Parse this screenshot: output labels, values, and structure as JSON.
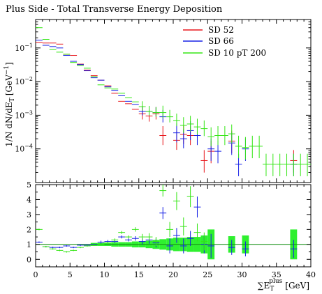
{
  "chart_data": {
    "type": "scatter",
    "title": "Plus Side - Total Transverse Energy Deposition",
    "xlabel": "∑E_T^plus [GeV]",
    "xlabel_sum": "∑",
    "xlabel_var": "E",
    "xlabel_sub": "T",
    "xlabel_sup": "plus",
    "xlabel_unit": "[GeV]",
    "ylabel": "1/N dN/dE_T [GeV^−1]",
    "ylabel_main": "1/N dN/dE",
    "ylabel_sub": "T",
    "ylabel_unit": "[GeV",
    "ylabel_sup": "−1",
    "ylabel_close": "]",
    "xlim": [
      0,
      40
    ],
    "ylim_main": [
      1e-05,
      0.7
    ],
    "yscale_main": "log",
    "ylim_ratio": [
      -0.5,
      5
    ],
    "legend_placement": "top-right",
    "x_ticks": [
      0,
      5,
      10,
      15,
      20,
      25,
      30,
      35,
      40
    ],
    "x_tick_labels": [
      "0",
      "5",
      "10",
      "15",
      "20",
      "25",
      "30",
      "35",
      "40"
    ],
    "y_ticks_main": [
      0.0001,
      0.001,
      0.01,
      0.1
    ],
    "y_tick_labels_main": [
      "10",
      "10",
      "10",
      "10"
    ],
    "y_tick_exps_main": [
      "−4",
      "−3",
      "−2",
      "−1"
    ],
    "y_ticks_ratio": [
      0,
      1,
      2,
      3,
      4,
      5
    ],
    "y_tick_labels_ratio": [
      "0",
      "1",
      "2",
      "3",
      "4",
      "5"
    ],
    "colors": {
      "sd52": "#e8161b",
      "sd66": "#1621e6",
      "sd10": "#35e615",
      "band": "#2ff02f",
      "ratio_line": "#169016"
    },
    "series": [
      {
        "name": "SD 52",
        "color": "#e8161b",
        "points": [
          [
            0.5,
            0.145,
            0
          ],
          [
            1.5,
            0.14,
            0
          ],
          [
            2.5,
            0.14,
            0
          ],
          [
            3.5,
            0.13,
            0
          ],
          [
            4.5,
            0.065,
            0
          ],
          [
            5.5,
            0.06,
            0
          ],
          [
            6.5,
            0.033,
            0
          ],
          [
            7.5,
            0.022,
            0
          ],
          [
            8.5,
            0.015,
            0
          ],
          [
            9.5,
            0.011,
            0
          ],
          [
            10.5,
            0.0075,
            0
          ],
          [
            11.5,
            0.0045,
            0
          ],
          [
            12.5,
            0.0026,
            0
          ],
          [
            13.5,
            0.0022,
            0
          ],
          [
            14.5,
            0.0015,
            0
          ],
          [
            15.5,
            0.0011,
            0.2
          ],
          [
            16.5,
            0.00095,
            0.2
          ],
          [
            17.5,
            0.0011,
            0.2
          ],
          [
            18.5,
            0.00025,
            0.3
          ],
          [
            20.5,
            0.00018,
            0.3
          ],
          [
            21.5,
            0.00027,
            0.3
          ],
          [
            22.5,
            0.00025,
            0.3
          ],
          [
            24.5,
            4.5e-05,
            0.35
          ],
          [
            25.5,
            8.5e-05,
            0.35
          ],
          [
            28.5,
            0.00017,
            0.35
          ],
          [
            37.5,
            4.5e-05,
            0.35
          ]
        ]
      },
      {
        "name": "SD 66",
        "color": "#1621e6",
        "points": [
          [
            0.5,
            0.17,
            0
          ],
          [
            1.5,
            0.12,
            0
          ],
          [
            2.5,
            0.11,
            0
          ],
          [
            3.5,
            0.1,
            0
          ],
          [
            4.5,
            0.06,
            0
          ],
          [
            5.5,
            0.04,
            0
          ],
          [
            6.5,
            0.032,
            0
          ],
          [
            7.5,
            0.021,
            0
          ],
          [
            8.5,
            0.013,
            0
          ],
          [
            9.5,
            0.011,
            0
          ],
          [
            10.5,
            0.007,
            0
          ],
          [
            11.5,
            0.0055,
            0
          ],
          [
            12.5,
            0.0038,
            0
          ],
          [
            13.5,
            0.0026,
            0
          ],
          [
            14.5,
            0.0021,
            0
          ],
          [
            15.5,
            0.0013,
            0.15
          ],
          [
            16.5,
            0.0013,
            0.15
          ],
          [
            17.5,
            0.0012,
            0.15
          ],
          [
            18.5,
            0.0009,
            0.2
          ],
          [
            20.5,
            0.0003,
            0.3
          ],
          [
            21.5,
            0.0002,
            0.3
          ],
          [
            22.5,
            0.00035,
            0.3
          ],
          [
            23.5,
            0.00025,
            0.3
          ],
          [
            25.5,
            0.0001,
            0.35
          ],
          [
            26.5,
            8.5e-05,
            0.35
          ],
          [
            28.5,
            0.00015,
            0.35
          ],
          [
            29.5,
            3.5e-05,
            0.35
          ],
          [
            30.5,
            0.0001,
            0.35
          ],
          [
            37.5,
            3.5e-05,
            0.35
          ]
        ]
      },
      {
        "name": "SD 10 pT 200",
        "color": "#35e615",
        "points": [
          [
            0.5,
            0.4,
            0
          ],
          [
            1.5,
            0.18,
            0
          ],
          [
            2.5,
            0.09,
            0
          ],
          [
            3.5,
            0.075,
            0
          ],
          [
            4.5,
            0.065,
            0
          ],
          [
            5.5,
            0.037,
            0
          ],
          [
            6.5,
            0.03,
            0
          ],
          [
            7.5,
            0.025,
            0
          ],
          [
            8.5,
            0.014,
            0
          ],
          [
            9.5,
            0.008,
            0
          ],
          [
            10.5,
            0.0065,
            0
          ],
          [
            11.5,
            0.006,
            0
          ],
          [
            12.5,
            0.0045,
            0
          ],
          [
            13.5,
            0.0033,
            0
          ],
          [
            14.5,
            0.0025,
            0
          ],
          [
            15.5,
            0.0018,
            0.15
          ],
          [
            16.5,
            0.0013,
            0.15
          ],
          [
            17.5,
            0.0012,
            0.15
          ],
          [
            18.5,
            0.0012,
            0.2
          ],
          [
            19.5,
            0.0009,
            0.2
          ],
          [
            20.5,
            0.0007,
            0.2
          ],
          [
            21.5,
            0.0005,
            0.25
          ],
          [
            22.5,
            0.00055,
            0.25
          ],
          [
            23.5,
            0.00045,
            0.25
          ],
          [
            24.5,
            0.0004,
            0.25
          ],
          [
            25.5,
            0.00023,
            0.3
          ],
          [
            26.5,
            0.00025,
            0.3
          ],
          [
            27.5,
            0.00025,
            0.3
          ],
          [
            28.5,
            0.00028,
            0.3
          ],
          [
            29.5,
            0.00012,
            0.35
          ],
          [
            30.5,
            0.00011,
            0.35
          ],
          [
            31.5,
            0.00012,
            0.35
          ],
          [
            32.5,
            0.00012,
            0.35
          ],
          [
            33.5,
            3.5e-05,
            0.35
          ],
          [
            34.5,
            3.5e-05,
            0.35
          ],
          [
            35.5,
            3.5e-05,
            0.35
          ],
          [
            36.5,
            3.5e-05,
            0.35
          ],
          [
            37.5,
            3.5e-05,
            0.35
          ],
          [
            38.5,
            3.5e-05,
            0.35
          ],
          [
            39.5,
            3.5e-05,
            0.35
          ]
        ]
      }
    ],
    "ratio_series": [
      {
        "name": "SD 66",
        "color": "#1621e6",
        "points": [
          [
            0.5,
            1.15,
            0.05
          ],
          [
            1.5,
            0.85,
            0.05
          ],
          [
            2.5,
            0.8,
            0.05
          ],
          [
            3.5,
            0.8,
            0.05
          ],
          [
            4.5,
            0.9,
            0.05
          ],
          [
            5.5,
            0.8,
            0.05
          ],
          [
            6.5,
            0.95,
            0.05
          ],
          [
            7.5,
            0.95,
            0.05
          ],
          [
            8.5,
            1.0,
            0.05
          ],
          [
            9.5,
            1.15,
            0.1
          ],
          [
            10.5,
            1.2,
            0.1
          ],
          [
            11.5,
            1.2,
            0.1
          ],
          [
            12.5,
            1.5,
            0.1
          ],
          [
            13.5,
            1.3,
            0.1
          ],
          [
            14.5,
            1.4,
            0.15
          ],
          [
            15.5,
            1.2,
            0.2
          ],
          [
            16.5,
            1.3,
            0.25
          ],
          [
            17.5,
            1.1,
            0.3
          ],
          [
            18.5,
            3.1,
            0.4
          ],
          [
            19.5,
            0.9,
            0.5
          ],
          [
            20.5,
            1.6,
            0.5
          ],
          [
            21.5,
            0.9,
            0.5
          ],
          [
            22.5,
            1.4,
            0.5
          ],
          [
            23.5,
            3.5,
            0.7
          ],
          [
            24.5,
            1.0,
            0.6
          ],
          [
            25.5,
            0.9,
            0.8
          ],
          [
            28.5,
            0.8,
            0.5
          ],
          [
            30.5,
            0.7,
            0.5
          ],
          [
            37.5,
            0.7,
            0.6
          ]
        ]
      },
      {
        "name": "SD 10 pT 200",
        "color": "#35e615",
        "points": [
          [
            0.5,
            2.0,
            0.05
          ],
          [
            1.5,
            0.85,
            0.05
          ],
          [
            2.5,
            0.7,
            0.05
          ],
          [
            3.5,
            0.6,
            0.05
          ],
          [
            4.5,
            0.5,
            0.05
          ],
          [
            5.5,
            0.6,
            0.05
          ],
          [
            6.5,
            0.8,
            0.05
          ],
          [
            7.5,
            0.9,
            0.05
          ],
          [
            8.5,
            0.95,
            0.05
          ],
          [
            9.5,
            1.0,
            0.05
          ],
          [
            10.5,
            1.1,
            0.05
          ],
          [
            11.5,
            1.3,
            0.1
          ],
          [
            12.5,
            1.8,
            0.1
          ],
          [
            13.5,
            1.5,
            0.1
          ],
          [
            14.5,
            2.0,
            0.15
          ],
          [
            15.5,
            1.5,
            0.2
          ],
          [
            16.5,
            1.5,
            0.25
          ],
          [
            17.5,
            1.2,
            0.3
          ],
          [
            18.5,
            4.6,
            0.4
          ],
          [
            19.5,
            2.0,
            0.5
          ],
          [
            20.5,
            3.9,
            0.6
          ],
          [
            21.5,
            2.2,
            0.6
          ],
          [
            22.5,
            4.2,
            0.7
          ],
          [
            23.5,
            1.8,
            0.6
          ],
          [
            24.5,
            1.2,
            0.6
          ]
        ]
      }
    ],
    "ratio_band": [
      [
        8,
        1.0,
        0.1
      ],
      [
        9,
        1.0,
        0.1
      ],
      [
        10,
        1.0,
        0.1
      ],
      [
        11,
        1.0,
        0.15
      ],
      [
        12,
        1.0,
        0.15
      ],
      [
        13,
        1.0,
        0.15
      ],
      [
        14,
        1.0,
        0.2
      ],
      [
        15,
        1.0,
        0.2
      ],
      [
        16,
        1.0,
        0.25
      ],
      [
        17,
        1.0,
        0.3
      ],
      [
        18,
        1.0,
        0.35
      ],
      [
        19,
        1.0,
        0.4
      ],
      [
        20,
        1.0,
        0.45
      ],
      [
        21,
        1.0,
        0.45
      ],
      [
        22,
        1.0,
        0.5
      ],
      [
        23,
        1.0,
        0.5
      ],
      [
        24,
        1.0,
        0.6
      ],
      [
        25,
        1.0,
        1.0
      ],
      [
        28,
        1.0,
        0.55
      ],
      [
        30,
        1.0,
        0.6
      ],
      [
        37,
        1.0,
        1.0
      ]
    ]
  }
}
